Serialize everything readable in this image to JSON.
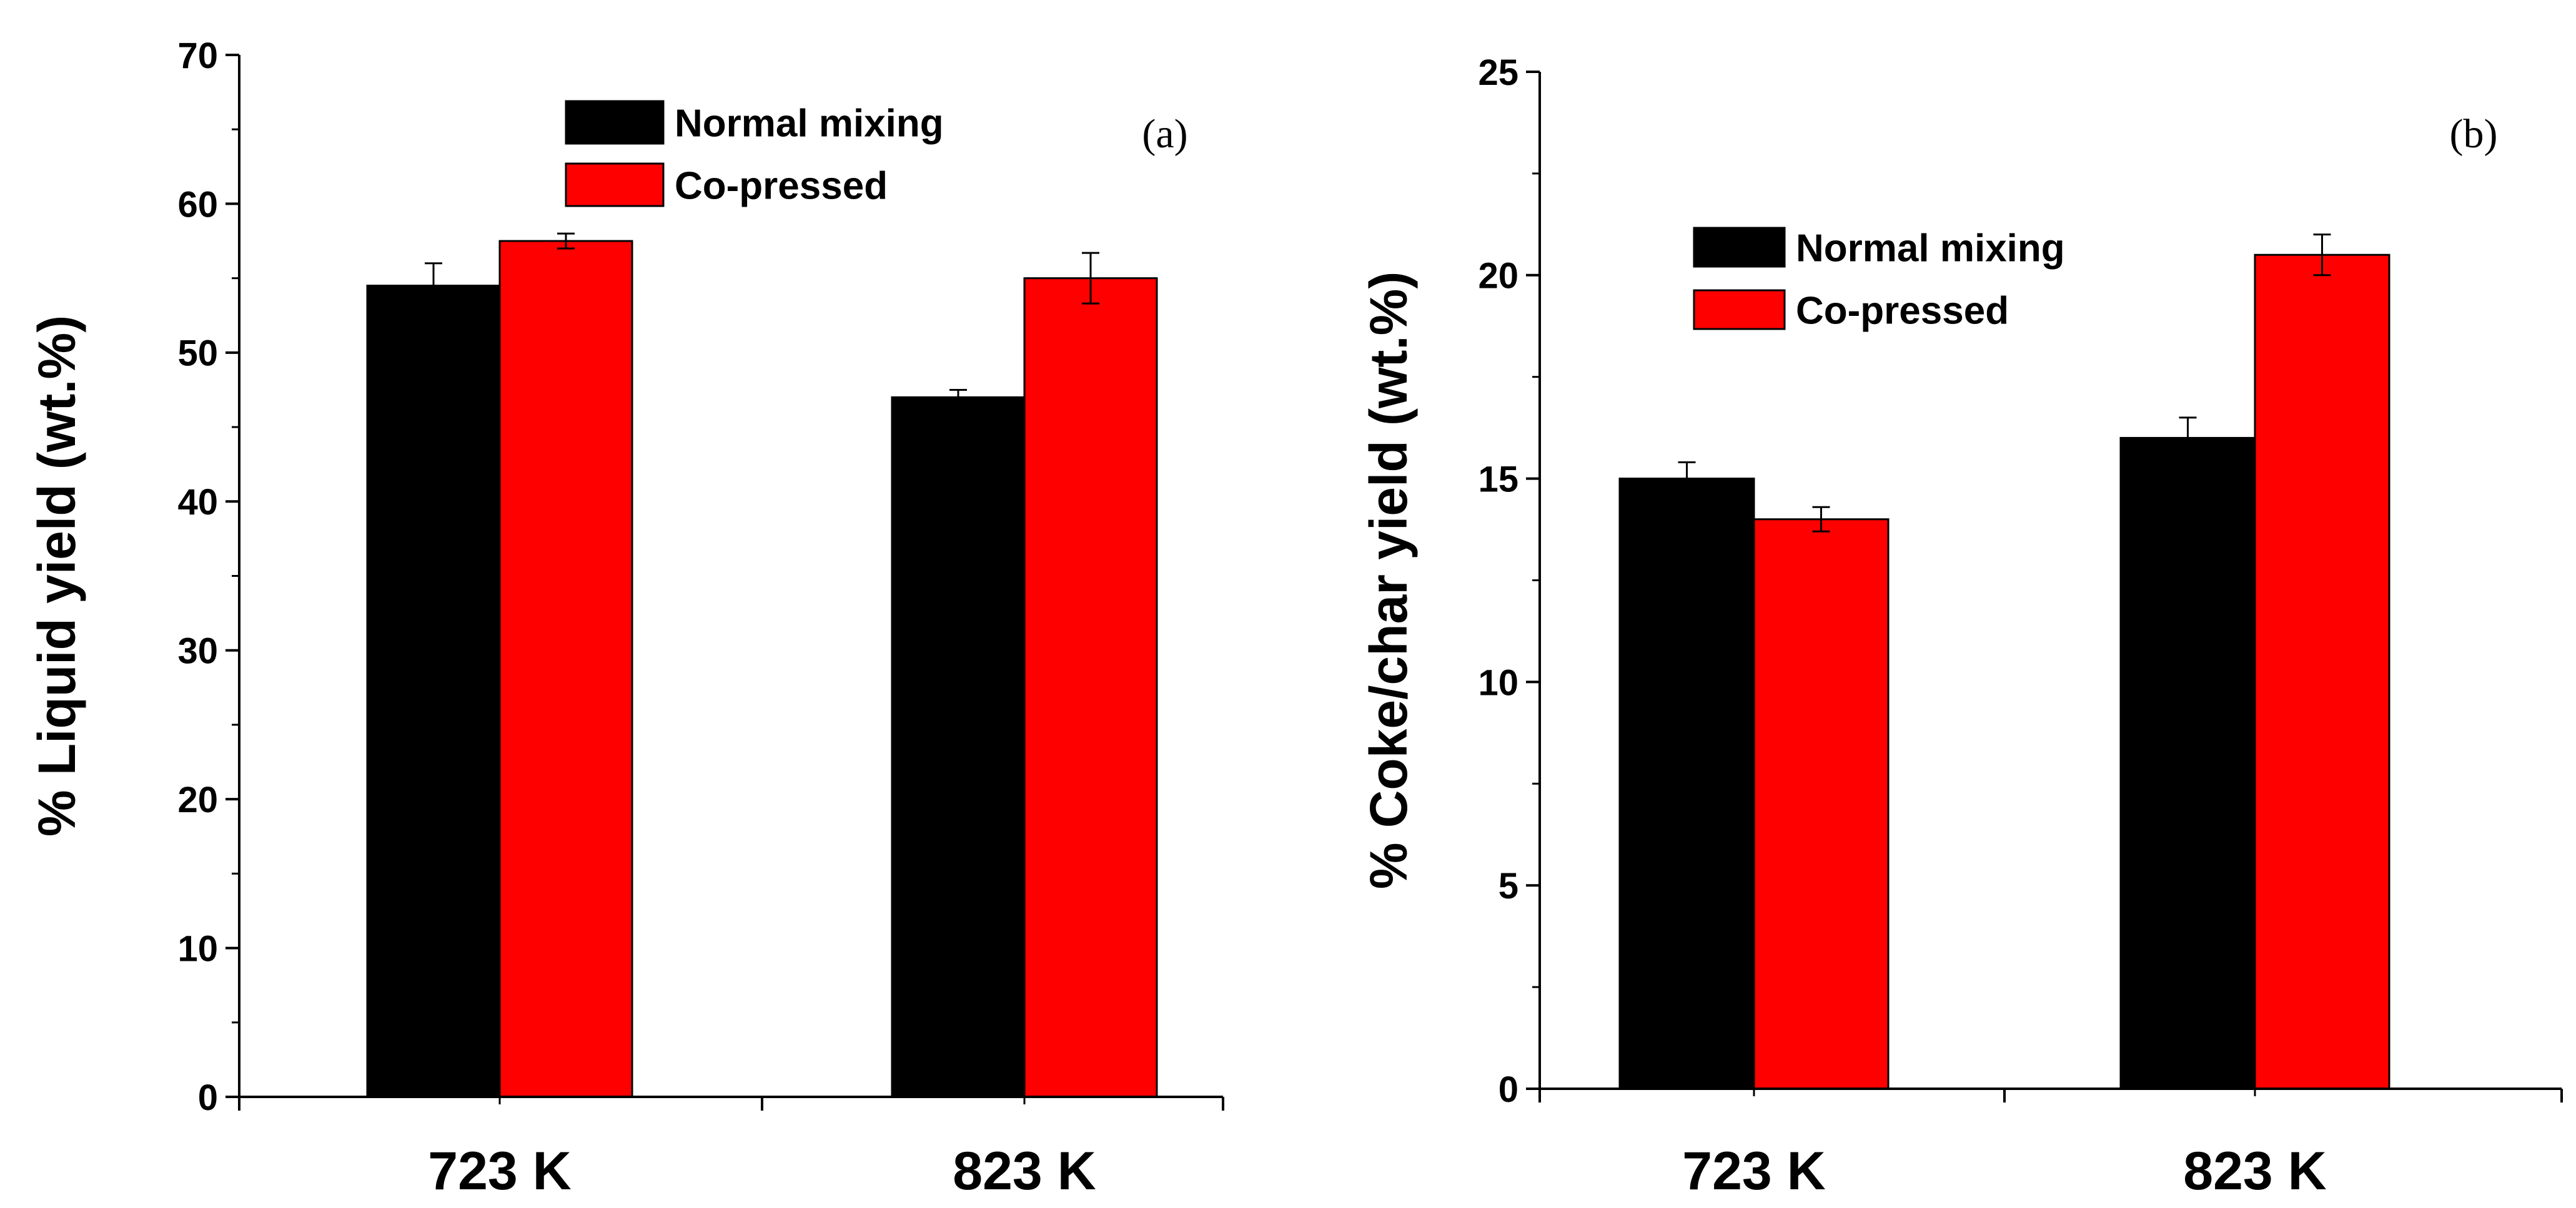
{
  "chart_data": [
    {
      "type": "bar",
      "panel_label": "(a)",
      "categories": [
        "723 K",
        "823 K"
      ],
      "series": [
        {
          "name": "Normal mixing",
          "color": "#000000",
          "values": [
            54.5,
            47.0
          ],
          "errors": [
            1.5,
            0.5
          ]
        },
        {
          "name": "Co-pressed",
          "color": "#ff0000",
          "values": [
            57.5,
            55.0
          ],
          "errors": [
            0.5,
            1.7
          ]
        }
      ],
      "ylabel": "% Liquid yield (wt.%)",
      "xlabel": "",
      "ylim": [
        0,
        70
      ],
      "yticks": [
        0,
        10,
        20,
        30,
        40,
        50,
        60,
        70
      ],
      "ytick_labels": [
        "0",
        "10",
        "20",
        "30",
        "40",
        "50",
        "60",
        "70"
      ],
      "legend_position": "top-center",
      "grid": false
    },
    {
      "type": "bar",
      "panel_label": "(b)",
      "categories": [
        "723 K",
        "823 K"
      ],
      "series": [
        {
          "name": "Normal mixing",
          "color": "#000000",
          "values": [
            15.0,
            16.0
          ],
          "errors": [
            0.4,
            0.5
          ]
        },
        {
          "name": "Co-pressed",
          "color": "#ff0000",
          "values": [
            14.0,
            20.5
          ],
          "errors": [
            0.3,
            0.5
          ]
        }
      ],
      "ylabel": "% Coke/char yield (wt.%)",
      "xlabel": "",
      "ylim": [
        0,
        25
      ],
      "yticks": [
        0,
        5,
        10,
        15,
        20,
        25
      ],
      "ytick_labels": [
        "0",
        "5",
        "10",
        "15",
        "20",
        "25"
      ],
      "legend_position": "top-left",
      "grid": false
    }
  ]
}
